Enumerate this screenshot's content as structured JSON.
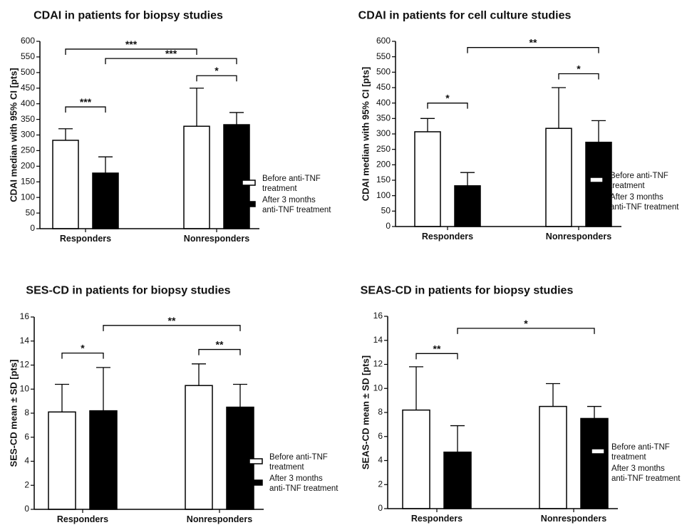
{
  "chart_data": [
    {
      "type": "bar",
      "title": "CDAI in patients for biopsy studies",
      "ylabel": "CDAI median with 95% CI [pts]",
      "xlabel": "",
      "ylim": [
        0,
        600
      ],
      "yticks": [
        0,
        50,
        100,
        150,
        200,
        250,
        300,
        350,
        400,
        450,
        500,
        550,
        600
      ],
      "categories": [
        "Responders",
        "Nonresponders"
      ],
      "series": [
        {
          "name": "Before anti-TNF treatment",
          "fill": "#ffffff",
          "values": [
            283,
            328
          ],
          "error_upper": [
            320,
            450
          ]
        },
        {
          "name": "After 3 months anti-TNF treatment",
          "fill": "#000000",
          "values": [
            178,
            333
          ],
          "error_upper": [
            230,
            372
          ]
        }
      ],
      "significance": [
        {
          "from": [
            0,
            0
          ],
          "to": [
            1,
            0
          ],
          "label": "***",
          "level": 575
        },
        {
          "from": [
            0,
            1
          ],
          "to": [
            1,
            1
          ],
          "label": "***",
          "level": 545
        },
        {
          "from": [
            1,
            0
          ],
          "to": [
            1,
            1
          ],
          "label": "*",
          "level": 490
        },
        {
          "from": [
            0,
            0
          ],
          "to": [
            0,
            1
          ],
          "label": "***",
          "level": 390
        }
      ],
      "legend": [
        {
          "line1": "Before anti-TNF",
          "line2": "treatment",
          "fill": "#ffffff"
        },
        {
          "line1": "After 3 months",
          "line2": "anti-TNF treatment",
          "fill": "#000000"
        }
      ]
    },
    {
      "type": "bar",
      "title": "CDAI in patients for cell culture studies",
      "ylabel": "CDAI median with 95% CI [pts]",
      "xlabel": "",
      "ylim": [
        0,
        600
      ],
      "yticks": [
        0,
        50,
        100,
        150,
        200,
        250,
        300,
        350,
        400,
        450,
        500,
        550,
        600
      ],
      "categories": [
        "Responders",
        "Nonresponders"
      ],
      "series": [
        {
          "name": "Before anti-TNF treatment",
          "fill": "#ffffff",
          "values": [
            307,
            318
          ],
          "error_upper": [
            350,
            450
          ]
        },
        {
          "name": "After 3 months anti-TNF treatment",
          "fill": "#000000",
          "values": [
            132,
            273
          ],
          "error_upper": [
            175,
            343
          ]
        }
      ],
      "significance": [
        {
          "from": [
            0,
            1
          ],
          "to": [
            1,
            1
          ],
          "label": "**",
          "level": 580
        },
        {
          "from": [
            1,
            0
          ],
          "to": [
            1,
            1
          ],
          "label": "*",
          "level": 495
        },
        {
          "from": [
            0,
            0
          ],
          "to": [
            0,
            1
          ],
          "label": "*",
          "level": 400
        }
      ],
      "legend": [
        {
          "line1": "Before anti-TNF",
          "line2": "treatment",
          "fill": "#ffffff"
        },
        {
          "line1": "After 3 months",
          "line2": "anti-TNF treatment",
          "fill": "#000000"
        }
      ]
    },
    {
      "type": "bar",
      "title": "SES-CD in patients for biopsy studies",
      "ylabel": "SES-CD mean ± SD [pts]",
      "xlabel": "",
      "ylim": [
        0,
        16
      ],
      "yticks": [
        0,
        2,
        4,
        6,
        8,
        10,
        12,
        14,
        16
      ],
      "categories": [
        "Responders",
        "Nonresponders"
      ],
      "series": [
        {
          "name": "Before anti-TNF treatment",
          "fill": "#ffffff",
          "values": [
            8.1,
            10.3
          ],
          "error_upper": [
            10.4,
            12.1
          ]
        },
        {
          "name": "After 3 months anti-TNF treatment",
          "fill": "#000000",
          "values": [
            8.2,
            8.5
          ],
          "error_upper": [
            11.8,
            10.4
          ]
        }
      ],
      "significance": [
        {
          "from": [
            0,
            1
          ],
          "to": [
            1,
            1
          ],
          "label": "**",
          "level": 15.3
        },
        {
          "from": [
            1,
            0
          ],
          "to": [
            1,
            1
          ],
          "label": "**",
          "level": 13.3
        },
        {
          "from": [
            0,
            0
          ],
          "to": [
            0,
            1
          ],
          "label": "*",
          "level": 13.0
        }
      ],
      "legend": [
        {
          "line1": "Before anti-TNF",
          "line2": "treatment",
          "fill": "#ffffff"
        },
        {
          "line1": "After 3 months",
          "line2": "anti-TNF treatment",
          "fill": "#000000"
        }
      ]
    },
    {
      "type": "bar",
      "title": "SEAS-CD in patients for biopsy studies",
      "ylabel": "SEAS-CD mean ± SD [pts]",
      "xlabel": "",
      "ylim": [
        0,
        16
      ],
      "yticks": [
        0,
        2,
        4,
        6,
        8,
        10,
        12,
        14,
        16
      ],
      "categories": [
        "Responders",
        "Nonresponders"
      ],
      "series": [
        {
          "name": "Before anti-TNF treatment",
          "fill": "#ffffff",
          "values": [
            8.2,
            8.5
          ],
          "error_upper": [
            11.8,
            10.4
          ]
        },
        {
          "name": "After 3 months anti-TNF treatment",
          "fill": "#000000",
          "values": [
            4.7,
            7.5
          ],
          "error_upper": [
            6.9,
            8.5
          ]
        }
      ],
      "significance": [
        {
          "from": [
            0,
            1
          ],
          "to": [
            1,
            1
          ],
          "label": "*",
          "level": 15.0
        },
        {
          "from": [
            0,
            0
          ],
          "to": [
            0,
            1
          ],
          "label": "**",
          "level": 12.9
        }
      ],
      "legend": [
        {
          "line1": "Before anti-TNF",
          "line2": "treatment",
          "fill": "#ffffff"
        },
        {
          "line1": "After 3 months",
          "line2": "anti-TNF treatment",
          "fill": "#000000"
        }
      ]
    }
  ]
}
